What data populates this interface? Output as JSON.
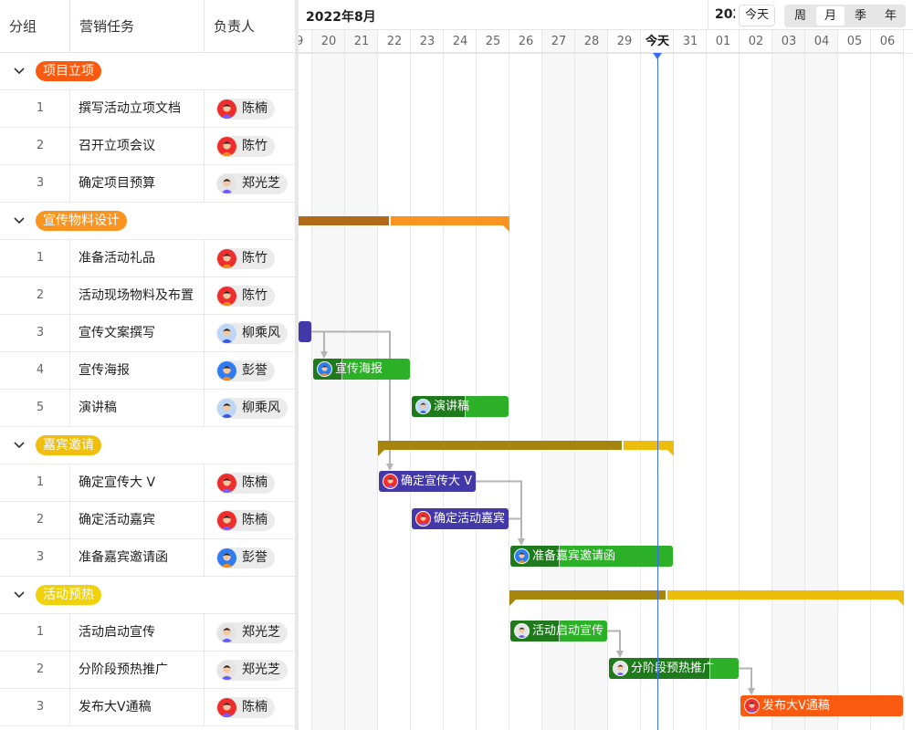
{
  "table": {
    "headers": [
      "分组",
      "营销任务",
      "负责人"
    ]
  },
  "people": {
    "陈楠": {
      "bg": "#f02d2d",
      "shirt": "#7b5cf5"
    },
    "陈竹": {
      "bg": "#f02d2d",
      "shirt": "#f08a1c"
    },
    "郑光芝": {
      "bg": "#e4e4e4",
      "shirt": "#6b5cf5"
    },
    "柳乘风": {
      "bg": "#bcd6f7",
      "shirt": "#3d5bd9"
    },
    "彭誉": {
      "bg": "#2f7cf0",
      "shirt": "#f08a1c"
    }
  },
  "groups": [
    {
      "name": "项目立项",
      "color": "#fa5a0f",
      "bar_light": null,
      "bar_dark": null,
      "start": null,
      "end": null,
      "progress": null,
      "tasks": [
        {
          "no": "1",
          "name": "撰写活动立项文档",
          "owner": "陈楠"
        },
        {
          "no": "2",
          "name": "召开立项会议",
          "owner": "陈竹"
        },
        {
          "no": "3",
          "name": "确定项目预算",
          "owner": "郑光芝"
        }
      ]
    },
    {
      "name": "宣传物料设计",
      "color": "#fa9420",
      "bar_light": "#fa9420",
      "bar_dark": "#b06a18",
      "start": "2022-08-16",
      "end": "2022-08-25",
      "progress": 0.64,
      "tasks": [
        {
          "no": "1",
          "name": "准备活动礼品",
          "owner": "陈竹"
        },
        {
          "no": "2",
          "name": "活动现场物料及布置",
          "owner": "陈竹"
        },
        {
          "no": "3",
          "name": "宣传文案撰写",
          "owner": "柳乘风",
          "start": "2022-08-17",
          "end": "2022-08-19",
          "color": "#4338a8",
          "progress": 1
        },
        {
          "no": "4",
          "name": "宣传海报",
          "owner": "彭誉",
          "start": "2022-08-20",
          "end": "2022-08-22",
          "color": "#2bb027",
          "dark": "#1f7a1c",
          "progress": 0.3
        },
        {
          "no": "5",
          "name": "演讲稿",
          "owner": "柳乘风",
          "start": "2022-08-23",
          "end": "2022-08-25",
          "color": "#2bb027",
          "dark": "#1f7a1c",
          "progress": 0.55
        }
      ]
    },
    {
      "name": "嘉宾邀请",
      "color": "#f0be0c",
      "bar_light": "#ecbd0c",
      "bar_dark": "#a6850e",
      "start": "2022-08-22",
      "end": "2022-08-30",
      "progress": 0.83,
      "tasks": [
        {
          "no": "1",
          "name": "确定宣传大 V",
          "owner": "陈楠",
          "start": "2022-08-22",
          "end": "2022-08-24",
          "color": "#4338a8",
          "progress": 1
        },
        {
          "no": "2",
          "name": "确定活动嘉宾",
          "owner": "陈楠",
          "start": "2022-08-23",
          "end": "2022-08-25",
          "color": "#4338a8",
          "progress": 1
        },
        {
          "no": "3",
          "name": "准备嘉宾邀请函",
          "owner": "彭誉",
          "start": "2022-08-26",
          "end": "2022-08-30",
          "color": "#2bb027",
          "dark": "#1f7a1c",
          "progress": 0.3
        }
      ]
    },
    {
      "name": "活动预热",
      "color": "#f0d20c",
      "bar_light": "#ecbd0c",
      "bar_dark": "#a6850e",
      "start": "2022-08-26",
      "end": "2022-09-06",
      "progress": 0.4,
      "tasks": [
        {
          "no": "1",
          "name": "活动启动宣传",
          "owner": "郑光芝",
          "start": "2022-08-26",
          "end": "2022-08-28",
          "color": "#2bb027",
          "dark": "#1f7a1c",
          "progress": 0.5
        },
        {
          "no": "2",
          "name": "分阶段预热推广",
          "owner": "郑光芝",
          "start": "2022-08-29",
          "end": "2022-09-01",
          "color": "#2bb027",
          "dark": "#1f7a1c",
          "progress": 0.77
        },
        {
          "no": "3",
          "name": "发布大V通稿",
          "owner": "陈楠",
          "start": "2022-09-02",
          "end": "2022-09-06",
          "color": "#fa5a0f",
          "progress": 0
        }
      ]
    }
  ],
  "dependencies": [
    [
      "宣传文案撰写",
      "宣传海报"
    ],
    [
      "宣传文案撰写",
      "确定宣传大 V"
    ],
    [
      "确定宣传大 V",
      "准备嘉宾邀请函"
    ],
    [
      "确定活动嘉宾",
      "准备嘉宾邀请函"
    ],
    [
      "活动启动宣传",
      "分阶段预热推广"
    ],
    [
      "分阶段预热推广",
      "发布大V通稿"
    ]
  ],
  "timeline": {
    "month_label": "2022年8月",
    "next_month_label": "202",
    "today_button": "今天",
    "today": "2022-08-30",
    "today_label": "今天",
    "days": [
      "19",
      "20",
      "21",
      "22",
      "23",
      "24",
      "25",
      "26",
      "27",
      "28",
      "29",
      "今天",
      "31",
      "01",
      "02",
      "03",
      "04",
      "05",
      "06"
    ],
    "weekend": [
      "20",
      "21",
      "27",
      "28",
      "03",
      "04"
    ],
    "views": [
      "周",
      "月",
      "季",
      "年"
    ],
    "active_view": "月",
    "today_line_color": "#3b6cf6"
  }
}
